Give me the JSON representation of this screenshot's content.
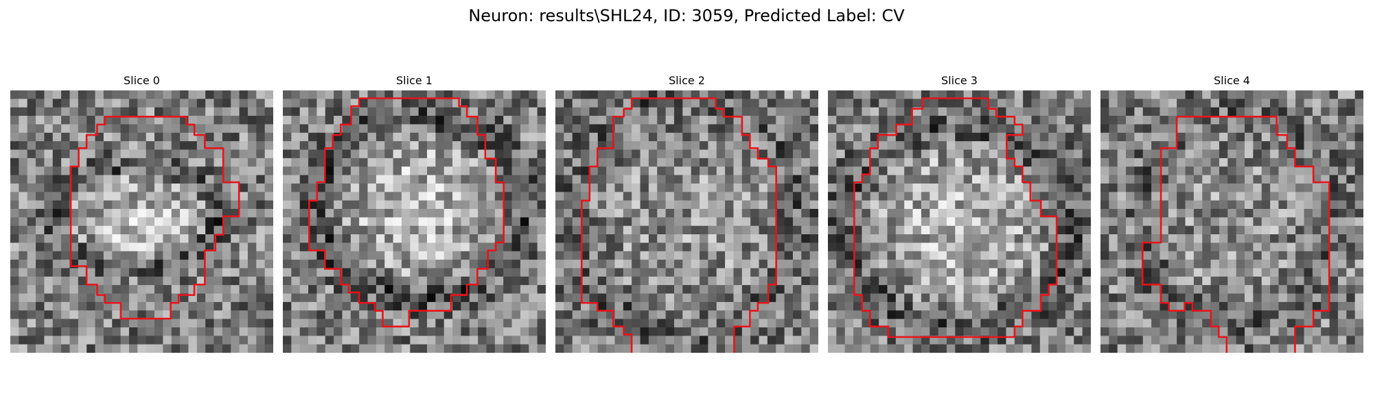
{
  "figure": {
    "title": "Neuron: results\\SHL24, ID: 3059, Predicted Label: CV"
  },
  "colors": {
    "background": "#ffffff",
    "contour": "#e8141a"
  },
  "panels": [
    {
      "title": "Slice 0"
    },
    {
      "title": "Slice 1"
    },
    {
      "title": "Slice 2"
    },
    {
      "title": "Slice 3"
    },
    {
      "title": "Slice 4"
    }
  ]
}
